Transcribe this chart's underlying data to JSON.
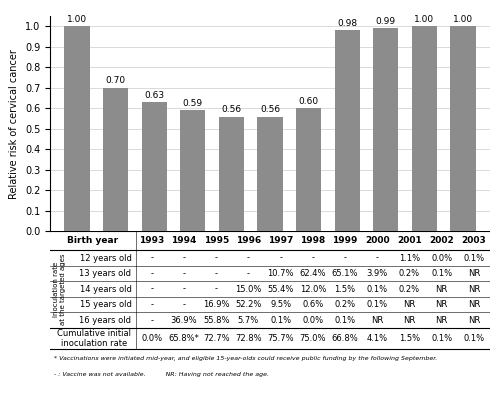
{
  "years": [
    "1993",
    "1994",
    "1995",
    "1996",
    "1997",
    "1998",
    "1999",
    "2000",
    "2001",
    "2002",
    "2003"
  ],
  "values": [
    1.0,
    0.7,
    0.63,
    0.59,
    0.56,
    0.56,
    0.6,
    0.98,
    0.99,
    1.0,
    1.0
  ],
  "bar_color": "#8c8c8c",
  "ylabel": "Relative risk of cervical cancer",
  "ylim": [
    0.0,
    1.05
  ],
  "yticks": [
    0.0,
    0.1,
    0.2,
    0.3,
    0.4,
    0.5,
    0.6,
    0.7,
    0.8,
    0.9,
    1.0
  ],
  "table_row_labels": [
    "12 years old",
    "13 years old",
    "14 years old",
    "15 years old",
    "16 years old",
    "Cumulative initial\ninoculation rate"
  ],
  "table_data": [
    [
      "-",
      "-",
      "-",
      "-",
      "-",
      "-",
      "-",
      "-",
      "1.1%",
      "0.0%",
      "0.1%"
    ],
    [
      "-",
      "-",
      "-",
      "-",
      "10.7%",
      "62.4%",
      "65.1%",
      "3.9%",
      "0.2%",
      "0.1%",
      "NR"
    ],
    [
      "-",
      "-",
      "-",
      "15.0%",
      "55.4%",
      "12.0%",
      "1.5%",
      "0.1%",
      "0.2%",
      "NR",
      "NR"
    ],
    [
      "-",
      "-",
      "16.9%",
      "52.2%",
      "9.5%",
      "0.6%",
      "0.2%",
      "0.1%",
      "NR",
      "NR",
      "NR"
    ],
    [
      "-",
      "36.9%",
      "55.8%",
      "5.7%",
      "0.1%",
      "0.0%",
      "0.1%",
      "NR",
      "NR",
      "NR",
      "NR"
    ],
    [
      "0.0%",
      "65.8%*",
      "72.7%",
      "72.8%",
      "75.7%",
      "75.0%",
      "66.8%",
      "4.1%",
      "1.5%",
      "0.1%",
      "0.1%"
    ]
  ],
  "footnote1": "* Vaccinations were initiated mid-year, and eligible 15-year-olds could receive public funding by the following September.",
  "footnote2": "- : Vaccine was not available.          NR: Having not reached the age.",
  "inoculation_label": "Inoculation rate\nat the targeted ages"
}
